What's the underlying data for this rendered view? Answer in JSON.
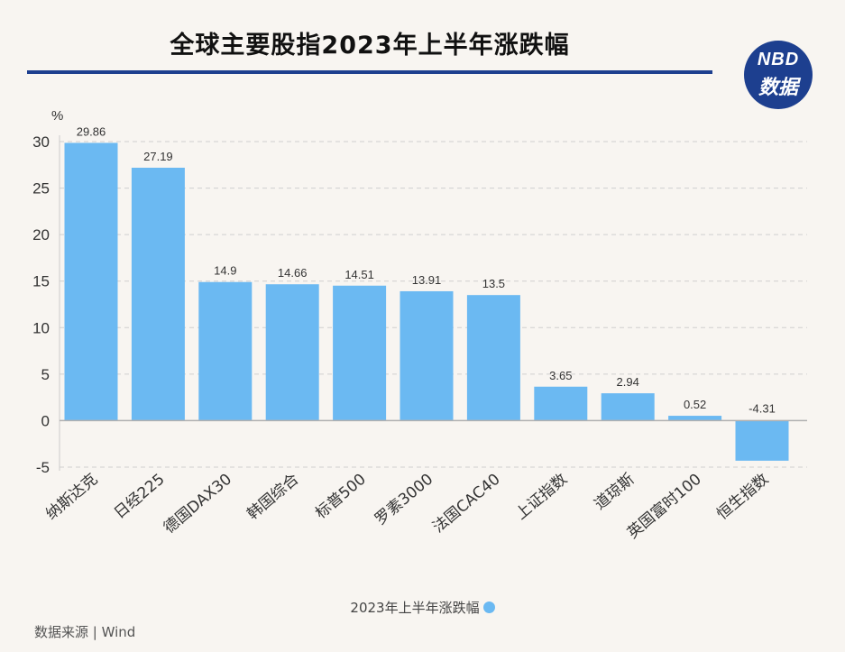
{
  "header": {
    "title": "全球主要股指2023年上半年涨跌幅",
    "logo_line1": "NBD",
    "logo_line2": "数据"
  },
  "chart_data": {
    "type": "bar",
    "title": "全球主要股指2023年上半年涨跌幅",
    "ylabel": "%",
    "ylim": [
      -5,
      30
    ],
    "yticks": [
      30,
      25,
      20,
      15,
      10,
      5,
      0,
      -5
    ],
    "grid": true,
    "legend_position": "bottom",
    "categories": [
      "纳斯达克",
      "日经225",
      "德国DAX30",
      "韩国综合",
      "标普500",
      "罗素3000",
      "法国CAC40",
      "上证指数",
      "道琼斯",
      "英国富时100",
      "恒生指数"
    ],
    "series": [
      {
        "name": "2023年上半年涨跌幅",
        "values": [
          29.86,
          27.19,
          14.9,
          14.66,
          14.51,
          13.91,
          13.5,
          3.65,
          2.94,
          0.52,
          -4.31
        ],
        "labels": [
          "29.86",
          "27.19",
          "14.9",
          "14.66",
          "14.51",
          "13.91",
          "13.5",
          "3.65",
          "2.94",
          "0.52",
          "-4.31"
        ],
        "color": "#6bb9f2"
      }
    ]
  },
  "legend": {
    "label": "2023年上半年涨跌幅"
  },
  "footer": {
    "source": "数据来源 | Wind"
  }
}
